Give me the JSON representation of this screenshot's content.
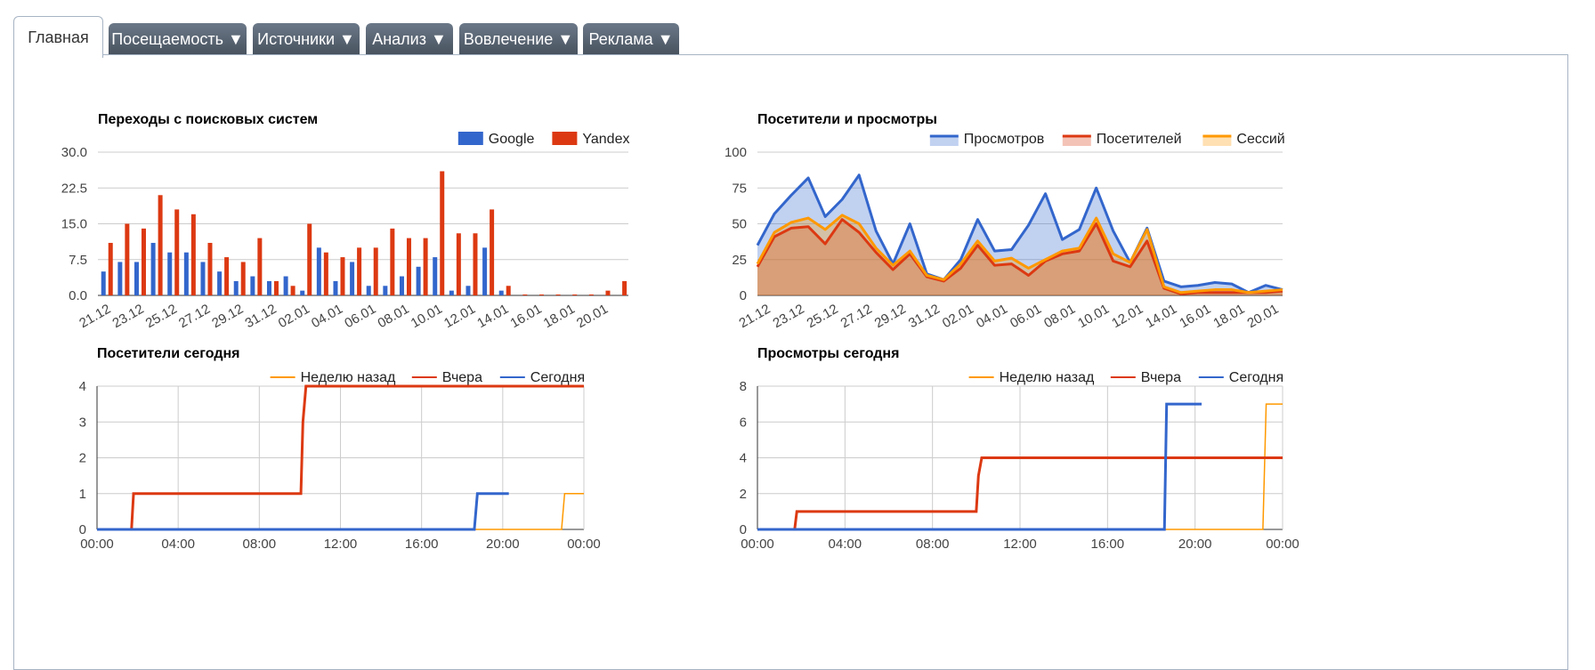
{
  "tabs": [
    {
      "label": "Главная",
      "active": true
    },
    {
      "label": "Посещаемость ▼"
    },
    {
      "label": "Источники ▼"
    },
    {
      "label": "Анализ ▼"
    },
    {
      "label": "Вовлечение ▼"
    },
    {
      "label": "Реклама ▼"
    }
  ],
  "chart_data": [
    {
      "id": "search",
      "type": "bar",
      "title": "Переходы с поисковых систем",
      "legend_position": "top-right",
      "ylim": [
        0,
        30
      ],
      "yticks": [
        "0.0",
        "7.5",
        "15.0",
        "22.5",
        "30.0"
      ],
      "categories": [
        "21.12",
        "22.12",
        "23.12",
        "24.12",
        "25.12",
        "26.12",
        "27.12",
        "28.12",
        "29.12",
        "30.12",
        "31.12",
        "01.01",
        "02.01",
        "03.01",
        "04.01",
        "05.01",
        "06.01",
        "07.01",
        "08.01",
        "09.01",
        "10.01",
        "11.01",
        "12.01",
        "13.01",
        "14.01",
        "15.01",
        "16.01",
        "17.01",
        "18.01",
        "19.01",
        "20.01",
        "21.01"
      ],
      "xtick_labels": [
        "21.12",
        "23.12",
        "25.12",
        "27.12",
        "29.12",
        "31.12",
        "02.01",
        "04.01",
        "06.01",
        "08.01",
        "10.01",
        "12.01",
        "14.01",
        "16.01",
        "18.01",
        "20.01"
      ],
      "series": [
        {
          "name": "Google",
          "color": "#3366cc",
          "values": [
            5,
            7,
            7,
            11,
            9,
            9,
            7,
            5,
            3,
            4,
            3,
            4,
            1,
            10,
            3,
            7,
            2,
            2,
            4,
            6,
            8,
            1,
            2,
            10,
            1,
            0,
            0,
            0,
            0,
            0,
            0,
            0
          ]
        },
        {
          "name": "Yandex",
          "color": "#dc3912",
          "values": [
            11,
            15,
            14,
            21,
            18,
            17,
            11,
            8,
            7,
            12,
            3,
            2,
            15,
            9,
            8,
            10,
            10,
            14,
            12,
            12,
            26,
            13,
            13,
            18,
            2,
            0.2,
            0.2,
            0.2,
            0.2,
            0.2,
            1,
            3
          ]
        }
      ]
    },
    {
      "id": "visitors",
      "type": "area",
      "title": "Посетители и просмотры",
      "legend_position": "top-right",
      "ylim": [
        0,
        100
      ],
      "yticks": [
        "0",
        "25",
        "50",
        "75",
        "100"
      ],
      "categories": [
        "21.12",
        "22.12",
        "23.12",
        "24.12",
        "25.12",
        "26.12",
        "27.12",
        "28.12",
        "29.12",
        "30.12",
        "31.12",
        "01.01",
        "02.01",
        "03.01",
        "04.01",
        "05.01",
        "06.01",
        "07.01",
        "08.01",
        "09.01",
        "10.01",
        "11.01",
        "12.01",
        "13.01",
        "14.01",
        "15.01",
        "16.01",
        "17.01",
        "18.01",
        "19.01",
        "20.01",
        "21.01"
      ],
      "xtick_labels": [
        "21.12",
        "23.12",
        "25.12",
        "27.12",
        "29.12",
        "31.12",
        "02.01",
        "04.01",
        "06.01",
        "08.01",
        "10.01",
        "12.01",
        "14.01",
        "16.01",
        "18.01",
        "20.01"
      ],
      "series": [
        {
          "name": "Просмотров",
          "color": "#3366cc",
          "values": [
            35,
            57,
            70,
            82,
            55,
            67,
            84,
            45,
            22,
            50,
            15,
            11,
            25,
            53,
            31,
            32,
            49,
            71,
            39,
            46,
            75,
            45,
            23,
            47,
            10,
            6,
            7,
            9,
            8,
            2,
            7,
            4
          ]
        },
        {
          "name": "Посетителей",
          "color": "#dc3912",
          "values": [
            20,
            41,
            47,
            48,
            36,
            53,
            44,
            30,
            18,
            29,
            13,
            10,
            19,
            35,
            21,
            22,
            14,
            24,
            29,
            31,
            50,
            24,
            20,
            38,
            5,
            1,
            2,
            2,
            2,
            2,
            2,
            3
          ]
        },
        {
          "name": "Сессий",
          "color": "#ff9900",
          "values": [
            22,
            44,
            51,
            54,
            46,
            56,
            50,
            33,
            21,
            31,
            14,
            11,
            22,
            38,
            24,
            26,
            19,
            25,
            31,
            33,
            54,
            29,
            23,
            46,
            6,
            2,
            3,
            4,
            4,
            2,
            3,
            4
          ]
        }
      ]
    },
    {
      "id": "visitors_today",
      "type": "line",
      "title": "Посетители сегодня",
      "legend_position": "top-right",
      "xlim": [
        0,
        24
      ],
      "ylim": [
        0,
        4
      ],
      "yticks": [
        "0",
        "1",
        "2",
        "3",
        "4"
      ],
      "xtick_labels": [
        "00:00",
        "04:00",
        "08:00",
        "12:00",
        "16:00",
        "20:00",
        "00:00"
      ],
      "series": [
        {
          "name": "Неделю назад",
          "color": "#ff9900",
          "points": [
            [
              0,
              0
            ],
            [
              22.9,
              0
            ],
            [
              23.05,
              1
            ],
            [
              24,
              1
            ]
          ]
        },
        {
          "name": "Вчера",
          "color": "#dc3912",
          "points": [
            [
              0,
              0
            ],
            [
              1.7,
              0
            ],
            [
              1.8,
              1
            ],
            [
              10.05,
              1
            ],
            [
              10.15,
              3
            ],
            [
              10.3,
              4
            ],
            [
              24,
              4
            ]
          ]
        },
        {
          "name": "Сегодня",
          "color": "#3366cc",
          "points": [
            [
              0,
              0
            ],
            [
              18.6,
              0
            ],
            [
              18.75,
              1
            ],
            [
              20.3,
              1
            ]
          ]
        }
      ]
    },
    {
      "id": "views_today",
      "type": "line",
      "title": "Просмотры сегодня",
      "legend_position": "top-right",
      "xlim": [
        0,
        24
      ],
      "ylim": [
        0,
        8
      ],
      "yticks": [
        "0",
        "2",
        "4",
        "6",
        "8"
      ],
      "xtick_labels": [
        "00:00",
        "04:00",
        "08:00",
        "12:00",
        "16:00",
        "20:00",
        "00:00"
      ],
      "series": [
        {
          "name": "Неделю назад",
          "color": "#ff9900",
          "points": [
            [
              0,
              0
            ],
            [
              23.1,
              0
            ],
            [
              23.25,
              7
            ],
            [
              24,
              7
            ]
          ]
        },
        {
          "name": "Вчера",
          "color": "#dc3912",
          "points": [
            [
              0,
              0
            ],
            [
              1.7,
              0
            ],
            [
              1.8,
              1
            ],
            [
              10.0,
              1
            ],
            [
              10.1,
              3
            ],
            [
              10.25,
              4
            ],
            [
              24,
              4
            ]
          ]
        },
        {
          "name": "Сегодня",
          "color": "#3366cc",
          "points": [
            [
              0,
              0
            ],
            [
              18.6,
              0
            ],
            [
              18.7,
              7
            ],
            [
              20.3,
              7
            ]
          ]
        }
      ]
    }
  ]
}
